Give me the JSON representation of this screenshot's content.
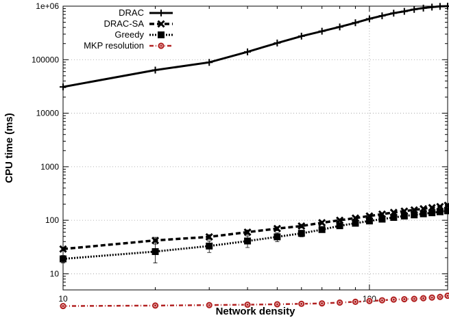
{
  "chart_data": {
    "type": "line",
    "xlabel": "Network density",
    "ylabel": "CPU time (ms)",
    "x_scale": "log",
    "y_scale": "log",
    "xlim": [
      10,
      180
    ],
    "ylim": [
      5,
      1000000
    ],
    "x_ticks": [
      {
        "value": 10,
        "label": "10"
      },
      {
        "value": 100,
        "label": "100"
      }
    ],
    "y_ticks": [
      {
        "value": 10,
        "label": "10"
      },
      {
        "value": 100,
        "label": "100"
      },
      {
        "value": 1000,
        "label": "1000"
      },
      {
        "value": 10000,
        "label": "10000"
      },
      {
        "value": 100000,
        "label": "100000"
      },
      {
        "value": 1000000,
        "label": "1e+06"
      }
    ],
    "grid": true,
    "legend_position": "top-left",
    "series": [
      {
        "name": "DRAC",
        "color": "#000000",
        "marker": "plus",
        "line": "solid",
        "x": [
          10,
          20,
          30,
          40,
          50,
          60,
          70,
          80,
          90,
          100,
          110,
          120,
          130,
          140,
          150,
          160,
          170,
          180
        ],
        "y": [
          31000,
          64000,
          89000,
          140000,
          205000,
          275000,
          340000,
          410000,
          490000,
          580000,
          660000,
          740000,
          800000,
          870000,
          920000,
          960000,
          990000,
          1000000
        ]
      },
      {
        "name": "DRAC-SA",
        "color": "#000000",
        "marker": "x",
        "line": "dashed",
        "x": [
          10,
          20,
          30,
          40,
          50,
          60,
          70,
          80,
          90,
          100,
          110,
          120,
          130,
          140,
          150,
          160,
          170,
          180
        ],
        "y": [
          29,
          42,
          49,
          60,
          70,
          78,
          90,
          100,
          110,
          120,
          130,
          140,
          148,
          156,
          164,
          172,
          180,
          190
        ],
        "error": [
          2,
          6,
          5,
          6,
          6,
          6,
          6,
          6,
          6,
          6,
          6,
          6,
          6,
          6,
          6,
          6,
          6,
          6
        ]
      },
      {
        "name": "Greedy",
        "color": "#000000",
        "marker": "box",
        "line": "dotted",
        "x": [
          10,
          20,
          30,
          40,
          50,
          60,
          70,
          80,
          90,
          100,
          110,
          120,
          130,
          140,
          150,
          160,
          170,
          180
        ],
        "y": [
          19,
          26,
          33,
          41,
          49,
          57,
          67,
          79,
          88,
          97,
          105,
          113,
          120,
          126,
          132,
          138,
          144,
          150
        ],
        "error": [
          3,
          10,
          8,
          10,
          9,
          8,
          8,
          8,
          8,
          8,
          8,
          8,
          8,
          8,
          8,
          8,
          8,
          8
        ]
      },
      {
        "name": "MKP resolution",
        "color": "#b22222",
        "marker": "circle",
        "line": "dashdot",
        "x": [
          10,
          20,
          30,
          40,
          50,
          60,
          70,
          80,
          90,
          100,
          110,
          120,
          130,
          140,
          150,
          160,
          170,
          180
        ],
        "y": [
          2.5,
          2.55,
          2.6,
          2.65,
          2.7,
          2.75,
          2.8,
          2.9,
          3.0,
          3.1,
          3.2,
          3.3,
          3.35,
          3.4,
          3.5,
          3.6,
          3.7,
          3.9
        ]
      }
    ]
  }
}
